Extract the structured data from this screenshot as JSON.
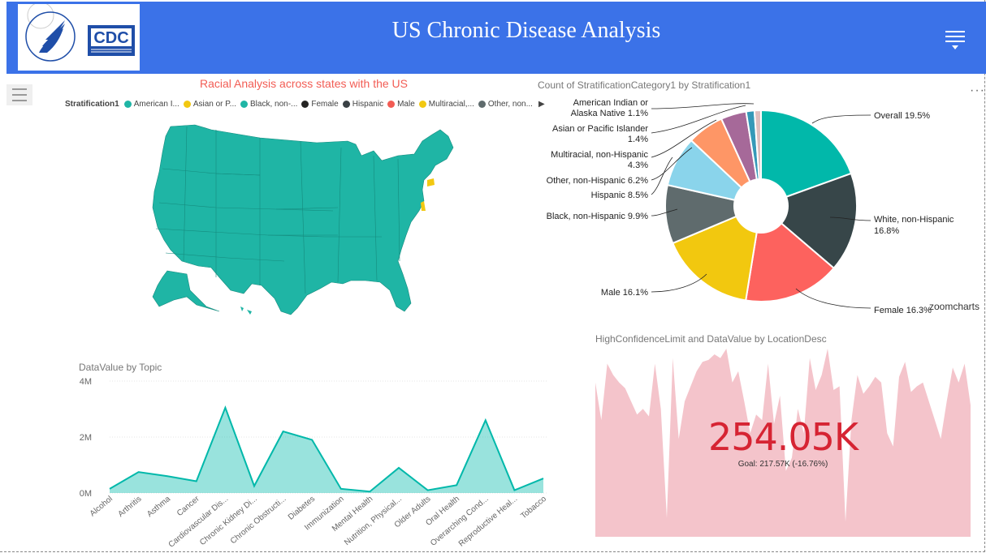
{
  "header": {
    "title": "US Chronic Disease Analysis",
    "logo_text": "CDC"
  },
  "map_visual": {
    "title": "Racial Analysis across states with the US",
    "legend_label": "Stratification1",
    "legend_items": [
      {
        "label": "American I...",
        "color": "#1fb5a5"
      },
      {
        "label": "Asian or P...",
        "color": "#f2c811"
      },
      {
        "label": "Black, non-...",
        "color": "#1fb5a5"
      },
      {
        "label": "Female",
        "color": "#252423"
      },
      {
        "label": "Hispanic",
        "color": "#3a4145"
      },
      {
        "label": "Male",
        "color": "#f25c54"
      },
      {
        "label": "Multiracial,...",
        "color": "#f2c811"
      },
      {
        "label": "Other, non...",
        "color": "#5f6b6d"
      }
    ],
    "map_color": "#1fb5a5",
    "highlight_color": "#f2c811"
  },
  "pie_visual": {
    "title": "Count of StratificationCategory1 by Stratification1",
    "watermark": "zoomcharts",
    "labels": {
      "overall": "Overall 19.5%",
      "white_1": "White, non-Hispanic",
      "white_2": "16.8%",
      "female": "Female 16.3%",
      "male": "Male 16.1%",
      "black": "Black, non-Hispanic 9.9%",
      "hispanic": "Hispanic 8.5%",
      "other": "Other, non-Hispanic 6.2%",
      "multi_1": "Multiracial, non-Hispanic",
      "multi_2": "4.3%",
      "asian_1": "Asian or Pacific Islander",
      "asian_2": "1.4%",
      "ai_1": "American Indian or",
      "ai_2": "Alaska Native 1.1%"
    }
  },
  "chart_data": [
    {
      "type": "pie",
      "title": "Count of StratificationCategory1 by Stratification1",
      "slices": [
        {
          "name": "Overall",
          "value": 19.5,
          "color": "#01b8aa"
        },
        {
          "name": "White, non-Hispanic",
          "value": 16.8,
          "color": "#374649"
        },
        {
          "name": "Female",
          "value": 16.3,
          "color": "#fd625e"
        },
        {
          "name": "Male",
          "value": 16.1,
          "color": "#f2c80f"
        },
        {
          "name": "Black, non-Hispanic",
          "value": 9.9,
          "color": "#5f6b6d"
        },
        {
          "name": "Hispanic",
          "value": 8.5,
          "color": "#8ad4eb"
        },
        {
          "name": "Other, non-Hispanic",
          "value": 6.2,
          "color": "#fe9666"
        },
        {
          "name": "Multiracial, non-Hispanic",
          "value": 4.3,
          "color": "#a66999"
        },
        {
          "name": "Asian or Pacific Islander",
          "value": 1.4,
          "color": "#3599b8"
        },
        {
          "name": "American Indian or Alaska Native",
          "value": 1.1,
          "color": "#dfbfbf"
        }
      ]
    },
    {
      "type": "area",
      "title": "DataValue by Topic",
      "categories": [
        "Alcohol",
        "Arthritis",
        "Asthma",
        "Cancer",
        "Cardiovascular Dis...",
        "Chronic Kidney Di...",
        "Chronic Obstructi...",
        "Diabetes",
        "Immunization",
        "Mental Health",
        "Nutrition, Physical...",
        "Older Adults",
        "Oral Health",
        "Overarching Cond...",
        "Reproductive Heal...",
        "Tobacco"
      ],
      "values": [
        0.15,
        0.75,
        0.6,
        0.42,
        3.05,
        0.25,
        2.2,
        1.9,
        0.15,
        0.05,
        0.9,
        0.1,
        0.28,
        2.6,
        0.1,
        0.52
      ],
      "unit": "M",
      "yticks": [
        "4M",
        "2M",
        "0M"
      ],
      "ylim": [
        0,
        4
      ],
      "color": "#01b8aa"
    },
    {
      "type": "area",
      "title": "HighConfidenceLimit and DataValue by LocationDesc",
      "kpi_value": "254.05K",
      "kpi_goal": "Goal: 217.57K (-16.76%)",
      "values": [
        0.82,
        0.62,
        0.92,
        0.86,
        0.82,
        0.79,
        0.72,
        0.65,
        0.68,
        0.64,
        0.92,
        0.68,
        0.1,
        0.95,
        0.52,
        0.72,
        0.8,
        0.88,
        0.93,
        0.94,
        0.97,
        0.95,
        1.0,
        0.82,
        0.88,
        0.72,
        0.55,
        0.65,
        0.62,
        0.92,
        0.6,
        0.75,
        0.35,
        0.42,
        0.68,
        0.55,
        0.95,
        0.78,
        0.86,
        1.0,
        0.78,
        0.8,
        0.08,
        0.62,
        0.86,
        0.76,
        0.8,
        0.85,
        0.82,
        0.55,
        0.48,
        0.85,
        0.93,
        0.77,
        0.8,
        0.82,
        0.72,
        0.62,
        0.52,
        0.72,
        0.9,
        0.82,
        0.92,
        0.7
      ],
      "ylim": [
        0,
        1
      ],
      "color": "#f4c4cb",
      "value_color": "#d62433"
    }
  ]
}
